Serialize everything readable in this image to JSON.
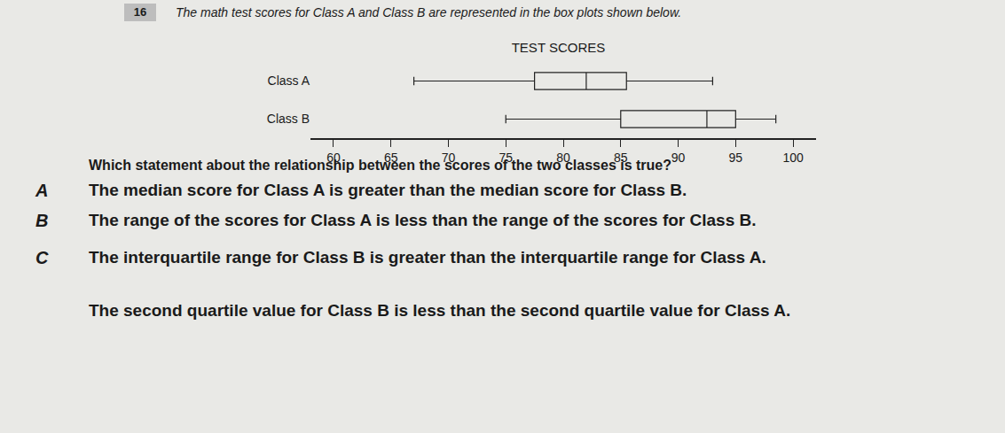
{
  "number": "16",
  "prompt": "The math test scores for Class A and Class B are represented in the box plots shown below.",
  "chart_data": {
    "type": "box",
    "orientation": "horizontal",
    "title": "TEST SCORES",
    "categories": [
      "Class A",
      "Class B"
    ],
    "min": [
      67,
      75
    ],
    "q1": [
      77.5,
      85
    ],
    "median": [
      82,
      92.5
    ],
    "q3": [
      85.5,
      95
    ],
    "max": [
      93,
      98.5
    ],
    "color": "#222222",
    "xlim": [
      58,
      102
    ],
    "xticks": [
      60,
      65,
      70,
      75,
      80,
      85,
      90,
      95,
      100
    ],
    "grid": false
  },
  "question": "Which statement about the relationship between the scores of the two classes is true?",
  "choices": [
    {
      "letter": "A",
      "text": "The median score for Class A is greater than the median score for Class B."
    },
    {
      "letter": "B",
      "text": "The range of the scores for Class A is less than the range of the scores for Class B."
    },
    {
      "letter": "C",
      "text": "The interquartile range for Class B is greater than the interquartile range for Class A."
    },
    {
      "letter": null,
      "text": "The second quartile value for Class B is less than the second quartile value for Class A."
    }
  ]
}
